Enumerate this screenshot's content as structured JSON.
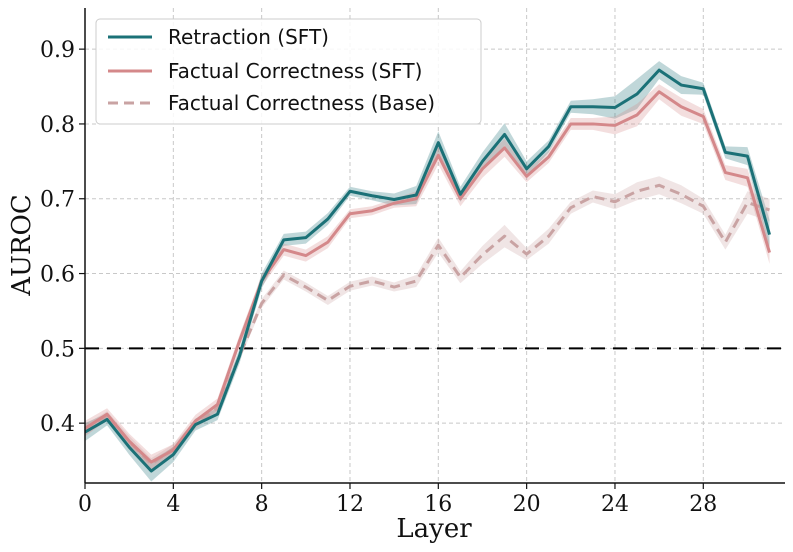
{
  "chart_data": {
    "type": "line",
    "xlabel": "Layer",
    "ylabel": "AUROC",
    "xlim": [
      0,
      31.7
    ],
    "ylim": [
      0.32,
      0.955
    ],
    "xticks": [
      0,
      4,
      8,
      12,
      16,
      20,
      24,
      28
    ],
    "yticks": [
      0.4,
      0.5,
      0.6,
      0.7,
      0.8,
      0.9
    ],
    "xtick_labels": [
      "0",
      "4",
      "8",
      "12",
      "16",
      "20",
      "24",
      "28"
    ],
    "ytick_labels": [
      "0.4",
      "0.5",
      "0.6",
      "0.7",
      "0.8",
      "0.9"
    ],
    "grid": true,
    "legend_position": "top-left",
    "reference_line": {
      "y": 0.5,
      "style": "dashed",
      "color": "#000000"
    },
    "x": [
      0,
      1,
      2,
      3,
      4,
      5,
      6,
      7,
      8,
      9,
      10,
      11,
      12,
      13,
      14,
      15,
      16,
      17,
      18,
      19,
      20,
      21,
      22,
      23,
      24,
      25,
      26,
      27,
      28,
      29,
      30,
      31
    ],
    "series": [
      {
        "name": "Retraction (SFT)",
        "color": "#1b7177",
        "dash": "solid",
        "values": [
          0.388,
          0.405,
          0.368,
          0.336,
          0.358,
          0.398,
          0.412,
          0.49,
          0.59,
          0.645,
          0.648,
          0.673,
          0.71,
          0.704,
          0.699,
          0.705,
          0.775,
          0.706,
          0.75,
          0.786,
          0.74,
          0.77,
          0.823,
          0.823,
          0.822,
          0.84,
          0.872,
          0.852,
          0.847,
          0.762,
          0.757,
          0.652
        ],
        "band": [
          0.012,
          0.008,
          0.01,
          0.014,
          0.01,
          0.008,
          0.008,
          0.01,
          0.01,
          0.008,
          0.008,
          0.008,
          0.006,
          0.006,
          0.008,
          0.012,
          0.015,
          0.01,
          0.012,
          0.015,
          0.01,
          0.008,
          0.008,
          0.01,
          0.015,
          0.02,
          0.012,
          0.012,
          0.008,
          0.008,
          0.012,
          0.02
        ]
      },
      {
        "name": "Factual Correctness (SFT)",
        "color": "#d4888a",
        "dash": "solid",
        "values": [
          0.393,
          0.412,
          0.376,
          0.348,
          0.364,
          0.403,
          0.425,
          0.51,
          0.59,
          0.632,
          0.624,
          0.642,
          0.68,
          0.684,
          0.694,
          0.7,
          0.758,
          0.7,
          0.74,
          0.768,
          0.73,
          0.756,
          0.8,
          0.8,
          0.798,
          0.812,
          0.843,
          0.823,
          0.81,
          0.735,
          0.728,
          0.628
        ],
        "band": [
          0.01,
          0.008,
          0.01,
          0.01,
          0.008,
          0.008,
          0.008,
          0.008,
          0.008,
          0.008,
          0.008,
          0.008,
          0.006,
          0.006,
          0.006,
          0.01,
          0.012,
          0.01,
          0.012,
          0.012,
          0.008,
          0.008,
          0.008,
          0.008,
          0.012,
          0.015,
          0.01,
          0.012,
          0.01,
          0.01,
          0.012,
          0.015
        ]
      },
      {
        "name": "Factual Correctness (Base)",
        "color": "#c9a3a3",
        "dash": "dashed",
        "values": [
          0.39,
          0.41,
          0.375,
          0.345,
          0.366,
          0.398,
          0.42,
          0.49,
          0.56,
          0.598,
          0.582,
          0.564,
          0.583,
          0.59,
          0.582,
          0.59,
          0.638,
          0.595,
          0.625,
          0.65,
          0.626,
          0.65,
          0.688,
          0.703,
          0.696,
          0.71,
          0.718,
          0.706,
          0.69,
          0.642,
          0.695,
          0.685
        ],
        "band": [
          0.008,
          0.006,
          0.008,
          0.008,
          0.006,
          0.006,
          0.006,
          0.006,
          0.006,
          0.006,
          0.006,
          0.006,
          0.006,
          0.006,
          0.006,
          0.008,
          0.01,
          0.008,
          0.012,
          0.015,
          0.008,
          0.01,
          0.008,
          0.008,
          0.01,
          0.012,
          0.012,
          0.012,
          0.01,
          0.01,
          0.015,
          0.015
        ]
      }
    ]
  }
}
